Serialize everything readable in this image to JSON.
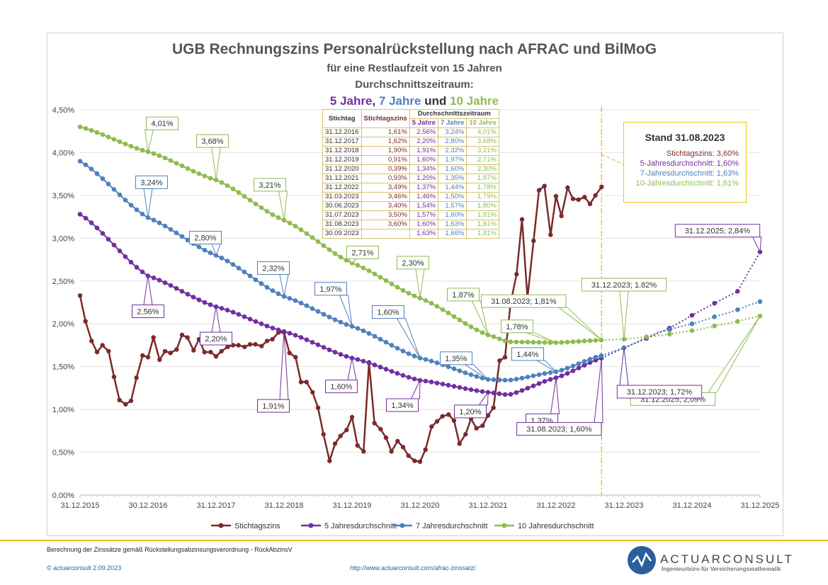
{
  "title": "UGB Rechnungszins Personalrückstellung nach AFRAC und BilMoG",
  "subtitle1": "für eine Restlaufzeit von 15 Jahren",
  "subtitle2": "Durchschnittszeitraum:",
  "subtitle3_parts": [
    "5 Jahre",
    ", ",
    "7 Jahre",
    " und ",
    "10 Jahre"
  ],
  "colors": {
    "stichtag": "#7b2a2a",
    "j5": "#7030a0",
    "j7": "#4f81bd",
    "j10": "#8fbc4f",
    "accent": "#f1c40f"
  },
  "table": {
    "headers": [
      "Stichtag",
      "Stichtagszins",
      "Durchschnittszeitraum",
      "5 Jahre",
      "7 Jahre",
      "10 Jahre"
    ],
    "rows": [
      [
        "31.12.2016",
        "1,61%",
        "2,56%",
        "3,24%",
        "4,01%"
      ],
      [
        "31.12.2017",
        "1,62%",
        "2,20%",
        "2,80%",
        "3,68%"
      ],
      [
        "31.12.2018",
        "1,90%",
        "1,91%",
        "2,32%",
        "3,21%"
      ],
      [
        "31.12.2019",
        "0,91%",
        "1,60%",
        "1,97%",
        "2,71%"
      ],
      [
        "31.12.2020",
        "0,39%",
        "1,34%",
        "1,60%",
        "2,30%"
      ],
      [
        "31.12.2021",
        "0,93%",
        "1,20%",
        "1,35%",
        "1,87%"
      ],
      [
        "31.12.2022",
        "3,49%",
        "1,37%",
        "1,44%",
        "1,78%"
      ],
      [
        "31.03.2023",
        "3,46%",
        "1,46%",
        "1,50%",
        "1,79%"
      ],
      [
        "30.06.2023",
        "3,40%",
        "1,54%",
        "1,57%",
        "1,80%"
      ],
      [
        "31.07.2023",
        "3,50%",
        "1,57%",
        "1,60%",
        "1,81%"
      ],
      [
        "31.08.2023",
        "3,60%",
        "1,60%",
        "1,63%",
        "1,81%"
      ],
      [
        "30.09.2023",
        "",
        "1,63%",
        "1,66%",
        "1,81%"
      ]
    ]
  },
  "stand": {
    "heading": "Stand 31.08.2023",
    "lines": [
      "Stichtagszins: 3,60%",
      "5-Jahresdurchschnitt: 1,60%",
      "7-Jahresdurchschnitt: 1,63%",
      "10-Jahresdurchschnitt: 1,81%"
    ]
  },
  "footer": {
    "note": "Berechnung der Zinssätze gemäß Rückstellungsabzinsungsverordnung - RückAbzinsV",
    "copyright": "© actuarconsult 2.09.2023",
    "url": "http://www.actuarconsult.com/afrac-zinssatz/",
    "logo_name": "ACTUARCONSULT",
    "logo_sub": "Ingenieurbüro für Versicherungsmathematik"
  },
  "chart_data": {
    "type": "line",
    "x_tick_labels": [
      "31.12.2015",
      "30.12.2016",
      "31.12.2017",
      "31.12.2018",
      "31.12.2019",
      "31.12.2020",
      "31.12.2021",
      "31.12.2022",
      "31.12.2023",
      "31.12.2024",
      "31.12.2025"
    ],
    "y_tick_labels": [
      "0,00%",
      "0,50%",
      "1,00%",
      "1,50%",
      "2,00%",
      "2,50%",
      "3,00%",
      "3,50%",
      "4,00%",
      "4,50%"
    ],
    "ylim": [
      0,
      4.5
    ],
    "x_range_years": [
      2016.0,
      2026.0
    ],
    "grid": "horizontal",
    "legend_position": "bottom",
    "vertical_marker": 2023.67,
    "series": [
      {
        "name": "Stichtagszins",
        "key": "stichtag",
        "x": [
          2016.0,
          2016.08,
          2016.17,
          2016.25,
          2016.33,
          2016.42,
          2016.5,
          2016.58,
          2016.67,
          2016.75,
          2016.83,
          2016.92,
          2017.0,
          2017.08,
          2017.17,
          2017.25,
          2017.33,
          2017.42,
          2017.5,
          2017.58,
          2017.67,
          2017.75,
          2017.83,
          2017.92,
          2018.0,
          2018.08,
          2018.17,
          2018.25,
          2018.33,
          2018.42,
          2018.5,
          2018.58,
          2018.67,
          2018.75,
          2018.83,
          2018.92,
          2019.0,
          2019.08,
          2019.17,
          2019.25,
          2019.33,
          2019.42,
          2019.5,
          2019.58,
          2019.67,
          2019.75,
          2019.83,
          2019.92,
          2020.0,
          2020.08,
          2020.17,
          2020.25,
          2020.33,
          2020.42,
          2020.5,
          2020.58,
          2020.67,
          2020.75,
          2020.83,
          2020.92,
          2021.0,
          2021.08,
          2021.17,
          2021.25,
          2021.33,
          2021.42,
          2021.5,
          2021.58,
          2021.67,
          2021.75,
          2021.83,
          2021.92,
          2022.0,
          2022.08,
          2022.17,
          2022.25,
          2022.33,
          2022.42,
          2022.5,
          2022.58,
          2022.67,
          2022.75,
          2022.83,
          2022.92,
          2023.0,
          2023.08,
          2023.17,
          2023.25,
          2023.33,
          2023.42,
          2023.5,
          2023.58,
          2023.67
        ],
        "y": [
          2.33,
          2.03,
          1.8,
          1.67,
          1.75,
          1.68,
          1.38,
          1.11,
          1.06,
          1.1,
          1.37,
          1.63,
          1.61,
          1.84,
          1.58,
          1.68,
          1.66,
          1.7,
          1.87,
          1.84,
          1.69,
          1.82,
          1.67,
          1.67,
          1.62,
          1.68,
          1.73,
          1.75,
          1.75,
          1.73,
          1.76,
          1.76,
          1.74,
          1.8,
          1.82,
          1.9,
          1.9,
          1.66,
          1.61,
          1.32,
          1.32,
          1.2,
          1.02,
          0.71,
          0.4,
          0.6,
          0.69,
          0.76,
          0.91,
          0.58,
          0.51,
          1.55,
          0.84,
          0.77,
          0.67,
          0.51,
          0.63,
          0.56,
          0.46,
          0.4,
          0.39,
          0.53,
          0.8,
          0.86,
          0.92,
          0.94,
          0.87,
          0.6,
          0.71,
          0.89,
          0.78,
          0.81,
          0.93,
          1.02,
          1.57,
          1.61,
          2.23,
          2.58,
          3.22,
          2.3,
          2.97,
          3.56,
          3.61,
          3.04,
          3.49,
          3.26,
          3.59,
          3.46,
          3.45,
          3.48,
          3.4,
          3.5,
          3.6
        ]
      },
      {
        "name": "5 Jahresdurchschnitt",
        "key": "j5",
        "anchors_x": [
          2016.0,
          2017.0,
          2018.0,
          2019.0,
          2020.0,
          2021.0,
          2022.0,
          2022.3,
          2023.0,
          2023.67,
          2024.0,
          2024.33,
          2024.67,
          2025.0,
          2025.33,
          2025.67,
          2026.0
        ],
        "anchors_y": [
          3.28,
          2.56,
          2.2,
          1.91,
          1.6,
          1.34,
          1.2,
          1.17,
          1.37,
          1.6,
          1.72,
          1.83,
          1.95,
          2.1,
          2.24,
          2.38,
          2.84
        ]
      },
      {
        "name": "7 Jahresdurchschnitt",
        "key": "j7",
        "anchors_x": [
          2016.0,
          2017.0,
          2018.0,
          2019.0,
          2020.0,
          2021.0,
          2022.0,
          2022.3,
          2023.0,
          2023.67,
          2024.0,
          2024.5,
          2025.0,
          2025.5,
          2026.0
        ],
        "anchors_y": [
          3.9,
          3.24,
          2.8,
          2.32,
          1.97,
          1.6,
          1.35,
          1.34,
          1.44,
          1.63,
          1.72,
          1.9,
          2.0,
          2.12,
          2.26
        ]
      },
      {
        "name": "10 Jahresdurchschnitt",
        "key": "j10",
        "anchors_x": [
          2016.0,
          2017.0,
          2018.0,
          2019.0,
          2020.0,
          2021.0,
          2022.0,
          2022.3,
          2023.0,
          2023.67,
          2024.0,
          2024.5,
          2025.0,
          2025.5,
          2026.0
        ],
        "anchors_y": [
          4.3,
          4.01,
          3.68,
          3.21,
          2.71,
          2.3,
          1.87,
          1.79,
          1.78,
          1.81,
          1.82,
          1.86,
          1.92,
          2.0,
          2.09
        ]
      }
    ],
    "callouts": [
      {
        "key": "j10",
        "x": 2017.0,
        "y": 4.01,
        "text": "4,01%",
        "dx": 20,
        "dy": -40
      },
      {
        "key": "j10",
        "x": 2018.0,
        "y": 3.68,
        "text": "3,68%",
        "dx": -5,
        "dy": -55
      },
      {
        "key": "j10",
        "x": 2019.0,
        "y": 3.21,
        "text": "3,21%",
        "dx": -20,
        "dy": -50
      },
      {
        "key": "j10",
        "x": 2020.0,
        "y": 2.71,
        "text": "2,71%",
        "dx": 15,
        "dy": -15
      },
      {
        "key": "j10",
        "x": 2021.0,
        "y": 2.3,
        "text": "2,30%",
        "dx": -10,
        "dy": -50
      },
      {
        "key": "j10",
        "x": 2022.0,
        "y": 1.87,
        "text": "1,87%",
        "dx": -35,
        "dy": -57
      },
      {
        "key": "j10",
        "x": 2023.0,
        "y": 1.78,
        "text": "1,78%",
        "dx": -55,
        "dy": -23
      },
      {
        "key": "j10",
        "x": 2023.67,
        "y": 1.81,
        "text": "31.08.2023; 1,81%",
        "dx": -110,
        "dy": -55
      },
      {
        "key": "j10",
        "x": 2024.0,
        "y": 1.82,
        "text": "31.12.2023; 1,82%",
        "dx": 0,
        "dy": -77
      },
      {
        "key": "j10",
        "x": 2026.0,
        "y": 2.09,
        "text": "31.12.2025; 2,09%",
        "dx": -123,
        "dy": 117
      },
      {
        "key": "j7",
        "x": 2017.0,
        "y": 3.24,
        "text": "3,24%",
        "dx": 5,
        "dy": -50
      },
      {
        "key": "j7",
        "x": 2018.0,
        "y": 2.8,
        "text": "2,80%",
        "dx": -15,
        "dy": -25
      },
      {
        "key": "j7",
        "x": 2019.0,
        "y": 2.32,
        "text": "2,32%",
        "dx": -15,
        "dy": -40
      },
      {
        "key": "j7",
        "x": 2020.0,
        "y": 1.97,
        "text": "1,97%",
        "dx": -30,
        "dy": -53
      },
      {
        "key": "j7",
        "x": 2021.0,
        "y": 1.6,
        "text": "1,60%",
        "dx": -45,
        "dy": -65
      },
      {
        "key": "j7",
        "x": 2022.0,
        "y": 1.35,
        "text": "1,35%",
        "dx": -45,
        "dy": -30
      },
      {
        "key": "j7",
        "x": 2023.0,
        "y": 1.44,
        "text": "1,44%",
        "dx": -40,
        "dy": -25
      },
      {
        "key": "j5",
        "x": 2017.0,
        "y": 2.56,
        "text": "2,56%",
        "dx": 0,
        "dy": 50
      },
      {
        "key": "j5",
        "x": 2018.0,
        "y": 2.2,
        "text": "2,20%",
        "dx": 0,
        "dy": 45
      },
      {
        "key": "j5",
        "x": 2019.0,
        "y": 1.91,
        "text": "1,91%",
        "dx": -15,
        "dy": 105
      },
      {
        "key": "j5",
        "x": 2020.0,
        "y": 1.6,
        "text": "1,60%",
        "dx": -15,
        "dy": 40
      },
      {
        "key": "j5",
        "x": 2021.0,
        "y": 1.34,
        "text": "1,34%",
        "dx": -25,
        "dy": 35
      },
      {
        "key": "j5",
        "x": 2022.0,
        "y": 1.2,
        "text": "1,20%",
        "dx": -25,
        "dy": 27
      },
      {
        "key": "j5",
        "x": 2023.0,
        "y": 1.37,
        "text": "1,37%",
        "dx": -20,
        "dy": 60
      },
      {
        "key": "j5",
        "x": 2023.67,
        "y": 1.6,
        "text": "31.08.2023; 1,60%",
        "dx": -60,
        "dy": 100
      },
      {
        "key": "j5",
        "x": 2024.0,
        "y": 1.72,
        "text": "31.12.2023; 1,72%",
        "dx": 50,
        "dy": 62
      },
      {
        "key": "j5",
        "x": 2026.0,
        "y": 2.84,
        "text": "31.12.2025; 2,84%",
        "dx": -60,
        "dy": -30
      }
    ]
  }
}
